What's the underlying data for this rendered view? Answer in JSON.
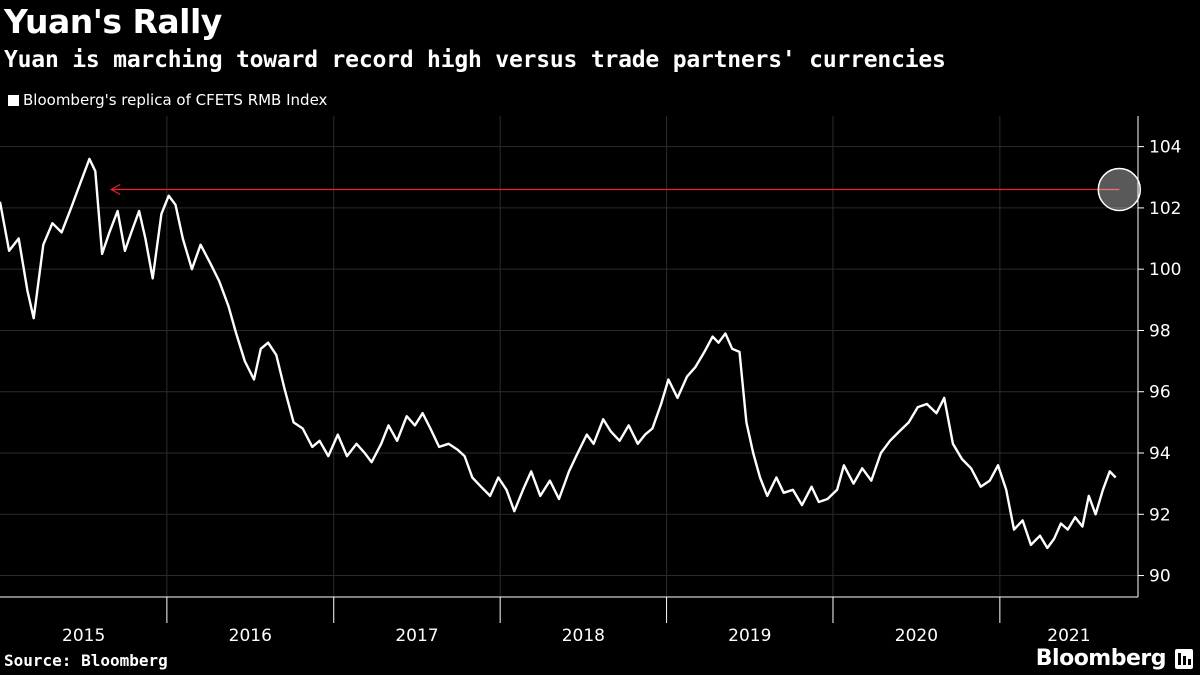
{
  "header": {
    "title": "Yuan's Rally",
    "subtitle": "Yuan is marching toward record high versus trade partners' currencies"
  },
  "footer": {
    "source": "Source: Bloomberg",
    "brand": "Bloomberg",
    "brand_icon": "terminal-icon"
  },
  "colors": {
    "background": "#000000",
    "series": "#ffffff",
    "arrow": "#e8232a",
    "grid": "#2b2b2b"
  },
  "chart_data": {
    "type": "line",
    "title": "Yuan's Rally",
    "subtitle": "Yuan is marching toward record high versus trade partners' currencies",
    "legend": {
      "placement": "top-left",
      "entries": [
        "Bloomberg's replica of CFETS RMB Index"
      ]
    },
    "grid": true,
    "x_ticks": [
      "2015",
      "2016",
      "2017",
      "2018",
      "2019",
      "2020",
      "2021"
    ],
    "xlim": [
      "2014-12-31",
      "2021-10-31"
    ],
    "y_ticks": [
      90,
      92,
      94,
      96,
      98,
      100,
      102,
      104
    ],
    "ylim": [
      89.3,
      105
    ],
    "y_axis_side": "right",
    "series": [
      {
        "name": "Bloomberg's replica of CFETS RMB Index",
        "points": [
          [
            "2014-12-31",
            102.2
          ],
          [
            "2015-01-20",
            100.6
          ],
          [
            "2015-02-10",
            101.0
          ],
          [
            "2015-03-01",
            99.3
          ],
          [
            "2015-03-15",
            98.4
          ],
          [
            "2015-04-05",
            100.8
          ],
          [
            "2015-04-25",
            101.5
          ],
          [
            "2015-05-15",
            101.2
          ],
          [
            "2015-06-05",
            102.0
          ],
          [
            "2015-06-25",
            102.8
          ],
          [
            "2015-07-15",
            103.6
          ],
          [
            "2015-07-28",
            103.2
          ],
          [
            "2015-08-12",
            100.5
          ],
          [
            "2015-08-28",
            101.2
          ],
          [
            "2015-09-15",
            101.9
          ],
          [
            "2015-10-01",
            100.6
          ],
          [
            "2015-10-15",
            101.2
          ],
          [
            "2015-11-01",
            101.9
          ],
          [
            "2015-11-15",
            101.0
          ],
          [
            "2015-12-01",
            99.7
          ],
          [
            "2015-12-20",
            101.8
          ],
          [
            "2016-01-05",
            102.4
          ],
          [
            "2016-01-20",
            102.1
          ],
          [
            "2016-02-05",
            101.0
          ],
          [
            "2016-02-25",
            100.0
          ],
          [
            "2016-03-15",
            100.8
          ],
          [
            "2016-04-05",
            100.2
          ],
          [
            "2016-04-25",
            99.6
          ],
          [
            "2016-05-15",
            98.8
          ],
          [
            "2016-06-01",
            97.9
          ],
          [
            "2016-06-20",
            97.0
          ],
          [
            "2016-07-10",
            96.4
          ],
          [
            "2016-07-25",
            97.4
          ],
          [
            "2016-08-10",
            97.6
          ],
          [
            "2016-08-28",
            97.2
          ],
          [
            "2016-09-15",
            96.1
          ],
          [
            "2016-10-05",
            95.0
          ],
          [
            "2016-10-25",
            94.8
          ],
          [
            "2016-11-15",
            94.2
          ],
          [
            "2016-12-01",
            94.4
          ],
          [
            "2016-12-20",
            93.9
          ],
          [
            "2017-01-10",
            94.6
          ],
          [
            "2017-01-30",
            93.9
          ],
          [
            "2017-02-20",
            94.3
          ],
          [
            "2017-03-10",
            94.0
          ],
          [
            "2017-03-25",
            93.7
          ],
          [
            "2017-04-15",
            94.3
          ],
          [
            "2017-05-01",
            94.9
          ],
          [
            "2017-05-20",
            94.4
          ],
          [
            "2017-06-10",
            95.2
          ],
          [
            "2017-06-28",
            94.9
          ],
          [
            "2017-07-15",
            95.3
          ],
          [
            "2017-08-01",
            94.8
          ],
          [
            "2017-08-20",
            94.2
          ],
          [
            "2017-09-10",
            94.3
          ],
          [
            "2017-09-30",
            94.1
          ],
          [
            "2017-10-15",
            93.9
          ],
          [
            "2017-11-01",
            93.2
          ],
          [
            "2017-11-20",
            92.9
          ],
          [
            "2017-12-10",
            92.6
          ],
          [
            "2017-12-28",
            93.2
          ],
          [
            "2018-01-15",
            92.8
          ],
          [
            "2018-02-01",
            92.1
          ],
          [
            "2018-02-20",
            92.8
          ],
          [
            "2018-03-10",
            93.4
          ],
          [
            "2018-03-30",
            92.6
          ],
          [
            "2018-04-20",
            93.1
          ],
          [
            "2018-05-10",
            92.5
          ],
          [
            "2018-06-01",
            93.4
          ],
          [
            "2018-06-20",
            94.0
          ],
          [
            "2018-07-10",
            94.6
          ],
          [
            "2018-07-25",
            94.3
          ],
          [
            "2018-08-15",
            95.1
          ],
          [
            "2018-09-01",
            94.7
          ],
          [
            "2018-09-20",
            94.4
          ],
          [
            "2018-10-10",
            94.9
          ],
          [
            "2018-10-30",
            94.3
          ],
          [
            "2018-11-15",
            94.6
          ],
          [
            "2018-12-01",
            94.8
          ],
          [
            "2018-12-20",
            95.6
          ],
          [
            "2019-01-05",
            96.4
          ],
          [
            "2019-01-25",
            95.8
          ],
          [
            "2019-02-15",
            96.5
          ],
          [
            "2019-03-05",
            96.8
          ],
          [
            "2019-03-25",
            97.3
          ],
          [
            "2019-04-12",
            97.8
          ],
          [
            "2019-04-25",
            97.6
          ],
          [
            "2019-05-10",
            97.9
          ],
          [
            "2019-05-25",
            97.4
          ],
          [
            "2019-06-10",
            97.3
          ],
          [
            "2019-06-25",
            95.0
          ],
          [
            "2019-07-10",
            94.0
          ],
          [
            "2019-07-25",
            93.2
          ],
          [
            "2019-08-10",
            92.6
          ],
          [
            "2019-08-30",
            93.2
          ],
          [
            "2019-09-15",
            92.7
          ],
          [
            "2019-10-05",
            92.8
          ],
          [
            "2019-10-25",
            92.3
          ],
          [
            "2019-11-15",
            92.9
          ],
          [
            "2019-12-01",
            92.4
          ],
          [
            "2019-12-20",
            92.5
          ],
          [
            "2020-01-10",
            92.8
          ],
          [
            "2020-01-25",
            93.6
          ],
          [
            "2020-02-15",
            93.0
          ],
          [
            "2020-03-05",
            93.5
          ],
          [
            "2020-03-25",
            93.1
          ],
          [
            "2020-04-15",
            94.0
          ],
          [
            "2020-05-05",
            94.4
          ],
          [
            "2020-05-25",
            94.7
          ],
          [
            "2020-06-15",
            95.0
          ],
          [
            "2020-07-05",
            95.5
          ],
          [
            "2020-07-25",
            95.6
          ],
          [
            "2020-08-15",
            95.3
          ],
          [
            "2020-09-01",
            95.8
          ],
          [
            "2020-09-20",
            94.3
          ],
          [
            "2020-10-10",
            93.8
          ],
          [
            "2020-10-30",
            93.5
          ],
          [
            "2020-11-20",
            92.9
          ],
          [
            "2020-12-10",
            93.1
          ],
          [
            "2020-12-28",
            93.6
          ],
          [
            "2021-01-15",
            92.8
          ],
          [
            "2021-02-01",
            91.5
          ],
          [
            "2021-02-20",
            91.8
          ],
          [
            "2021-03-10",
            91.0
          ],
          [
            "2021-03-30",
            91.3
          ],
          [
            "2021-04-15",
            90.9
          ],
          [
            "2021-04-30",
            91.2
          ],
          [
            "2021-05-15",
            91.7
          ],
          [
            "2021-05-30",
            91.5
          ],
          [
            "2021-06-15",
            91.9
          ],
          [
            "2021-07-01",
            91.6
          ],
          [
            "2021-07-15",
            92.6
          ],
          [
            "2021-07-30",
            92.0
          ],
          [
            "2021-08-15",
            92.8
          ],
          [
            "2021-08-30",
            93.4
          ],
          [
            "2021-09-12",
            93.2
          ]
        ]
      }
    ],
    "annotations": [
      {
        "type": "arrow",
        "from": [
          "2021-09-20",
          102.6
        ],
        "to": [
          "2015-09-01",
          102.6
        ]
      },
      {
        "type": "circle",
        "at": [
          "2021-09-20",
          102.6
        ]
      }
    ]
  }
}
